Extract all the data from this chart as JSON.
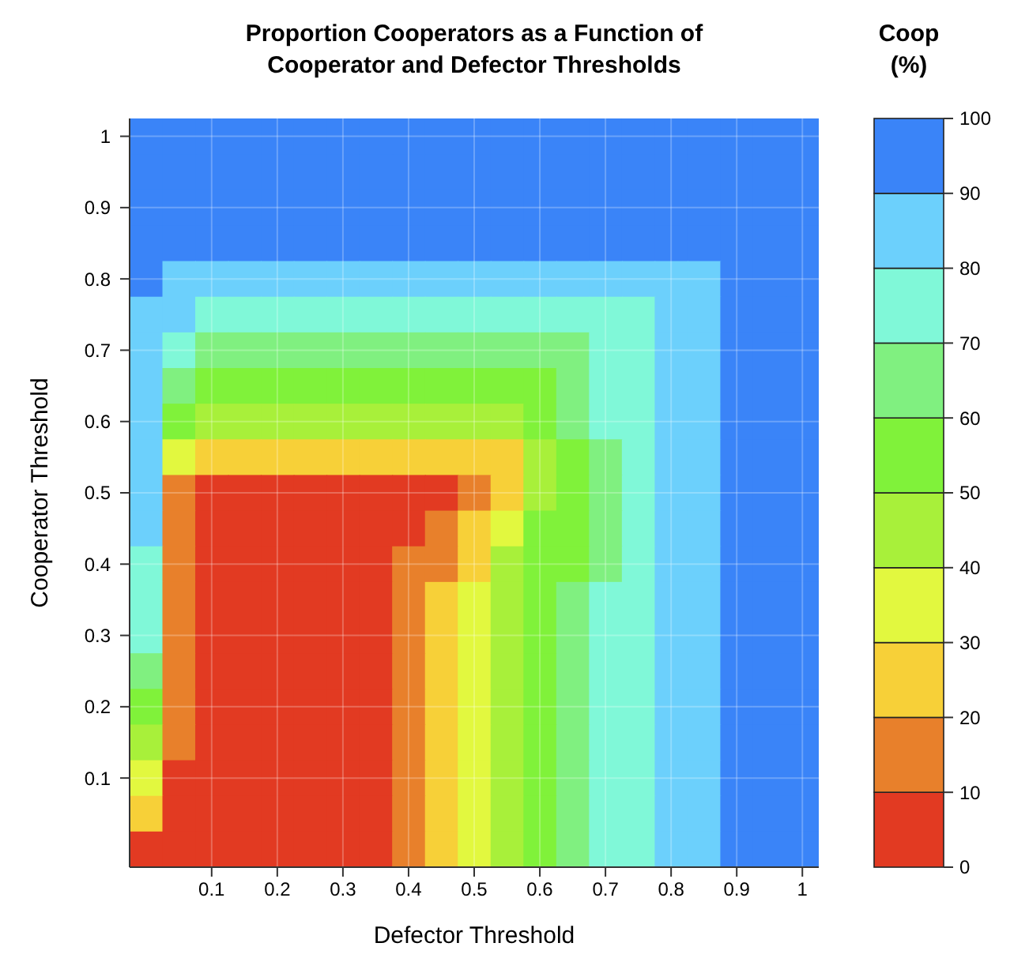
{
  "chart_data": {
    "type": "heatmap",
    "title": "Proportion Cooperators as a Function of\nCooperator and Defector Thresholds",
    "xlabel": "Defector Threshold",
    "ylabel": "Cooperator Threshold",
    "clabel": "Coop\n(%)",
    "categories": [
      null,
      null,
      "0.1",
      null,
      "0.2",
      null,
      "0.3",
      null,
      "0.4",
      null,
      "0.5",
      null,
      "0.6",
      null,
      "0.7",
      null,
      "0.8",
      null,
      "0.9",
      null,
      "1"
    ],
    "y_categories": [
      "1",
      null,
      "0.9",
      null,
      "0.8",
      null,
      "0.7",
      null,
      "0.6",
      null,
      "0.5",
      null,
      "0.4",
      null,
      "0.3",
      null,
      "0.2",
      null,
      "0.1",
      null,
      null
    ],
    "clim": [
      0,
      100
    ],
    "cticks": [
      0,
      10,
      20,
      30,
      40,
      50,
      60,
      70,
      80,
      90,
      100
    ],
    "colors": [
      "#e23a22",
      "#e8802b",
      "#f7d038",
      "#e2f83f",
      "#a8f03a",
      "#80f23a",
      "#80f080",
      "#80f8d8",
      "#6cd0fc",
      "#3a84f8"
    ],
    "grid": true,
    "cells": [
      [
        95,
        95,
        95,
        95,
        95,
        95,
        95,
        95,
        95,
        95,
        95,
        95,
        95,
        95,
        95,
        95,
        95,
        95,
        95,
        95,
        95
      ],
      [
        95,
        95,
        95,
        95,
        95,
        95,
        95,
        95,
        95,
        95,
        95,
        95,
        95,
        95,
        95,
        95,
        95,
        95,
        95,
        95,
        95
      ],
      [
        95,
        95,
        95,
        95,
        95,
        95,
        95,
        95,
        95,
        95,
        95,
        95,
        95,
        95,
        95,
        95,
        95,
        95,
        95,
        95,
        95
      ],
      [
        95,
        95,
        95,
        95,
        95,
        95,
        95,
        95,
        95,
        95,
        95,
        95,
        95,
        95,
        95,
        95,
        95,
        95,
        95,
        95,
        95
      ],
      [
        95,
        85,
        85,
        85,
        85,
        85,
        85,
        85,
        85,
        85,
        85,
        85,
        85,
        85,
        85,
        85,
        85,
        85,
        95,
        95,
        95
      ],
      [
        85,
        85,
        75,
        75,
        75,
        75,
        75,
        75,
        75,
        75,
        75,
        75,
        75,
        75,
        75,
        75,
        85,
        85,
        95,
        95,
        95
      ],
      [
        85,
        75,
        65,
        65,
        65,
        65,
        65,
        65,
        65,
        65,
        65,
        65,
        65,
        65,
        75,
        75,
        85,
        85,
        95,
        95,
        95
      ],
      [
        85,
        65,
        55,
        55,
        55,
        55,
        55,
        55,
        55,
        55,
        55,
        55,
        55,
        65,
        75,
        75,
        85,
        85,
        95,
        95,
        95
      ],
      [
        85,
        55,
        45,
        45,
        45,
        45,
        45,
        45,
        45,
        45,
        45,
        45,
        55,
        65,
        75,
        75,
        85,
        85,
        95,
        95,
        95
      ],
      [
        85,
        35,
        25,
        25,
        25,
        25,
        25,
        25,
        25,
        25,
        25,
        25,
        45,
        55,
        65,
        75,
        85,
        85,
        95,
        95,
        95
      ],
      [
        85,
        15,
        5,
        5,
        5,
        5,
        5,
        5,
        5,
        5,
        15,
        25,
        45,
        55,
        65,
        75,
        85,
        85,
        95,
        95,
        95
      ],
      [
        85,
        15,
        5,
        5,
        5,
        5,
        5,
        5,
        5,
        15,
        25,
        35,
        55,
        55,
        65,
        75,
        85,
        85,
        95,
        95,
        95
      ],
      [
        75,
        15,
        5,
        5,
        5,
        5,
        5,
        5,
        15,
        15,
        25,
        45,
        55,
        55,
        65,
        75,
        85,
        85,
        95,
        95,
        95
      ],
      [
        75,
        15,
        5,
        5,
        5,
        5,
        5,
        5,
        15,
        25,
        35,
        45,
        55,
        65,
        75,
        75,
        85,
        85,
        95,
        95,
        95
      ],
      [
        75,
        15,
        5,
        5,
        5,
        5,
        5,
        5,
        15,
        25,
        35,
        45,
        55,
        65,
        75,
        75,
        85,
        85,
        95,
        95,
        95
      ],
      [
        65,
        15,
        5,
        5,
        5,
        5,
        5,
        5,
        15,
        25,
        35,
        45,
        55,
        65,
        75,
        75,
        85,
        85,
        95,
        95,
        95
      ],
      [
        55,
        15,
        5,
        5,
        5,
        5,
        5,
        5,
        15,
        25,
        35,
        45,
        55,
        65,
        75,
        75,
        85,
        85,
        95,
        95,
        95
      ],
      [
        45,
        15,
        5,
        5,
        5,
        5,
        5,
        5,
        15,
        25,
        35,
        45,
        55,
        65,
        75,
        75,
        85,
        85,
        95,
        95,
        95
      ],
      [
        35,
        5,
        5,
        5,
        5,
        5,
        5,
        5,
        15,
        25,
        35,
        45,
        55,
        65,
        75,
        75,
        85,
        85,
        95,
        95,
        95
      ],
      [
        25,
        5,
        5,
        5,
        5,
        5,
        5,
        5,
        15,
        25,
        35,
        45,
        55,
        65,
        75,
        75,
        85,
        85,
        95,
        95,
        95
      ],
      [
        5,
        5,
        5,
        5,
        5,
        5,
        5,
        5,
        15,
        25,
        35,
        45,
        55,
        65,
        75,
        75,
        85,
        85,
        95,
        95,
        95
      ]
    ]
  }
}
